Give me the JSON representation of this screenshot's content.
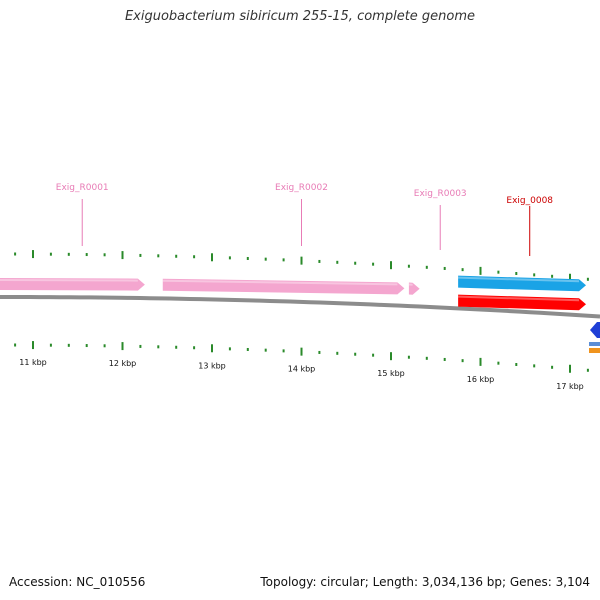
{
  "title": "Exiguobacterium sibiricum 255-15, complete genome",
  "footer": {
    "accession": "Accession: NC_010556",
    "summary": "Topology: circular; Length: 3,034,136 bp; Genes: 3,104"
  },
  "colors": {
    "rrna": "#f4a6cf",
    "cds_forward": "#1aa3e6",
    "cds_reverse": "#ff0000",
    "backbone": "#8c8c8c",
    "ticks": "#2a8a2a",
    "label_rrna": "#e87cb6",
    "label_cds": "#cc0000",
    "partial_blue": "#1f3fd6",
    "partial_orange": "#f0941e"
  },
  "scale": {
    "unit": "kbp",
    "labels": [
      "11 kbp",
      "12 kbp",
      "13 kbp",
      "14 kbp",
      "15 kbp",
      "16 kbp",
      "17 kbp"
    ]
  },
  "features": [
    {
      "name": "Exig_R0001",
      "type": "rRNA",
      "strand": "+",
      "start_kbp": 10.55,
      "end_kbp": 12.25,
      "label_kbp": 11.55
    },
    {
      "name": "Exig_R0002",
      "type": "rRNA",
      "strand": "+",
      "start_kbp": 12.45,
      "end_kbp": 15.15,
      "label_kbp": 14.0
    },
    {
      "name": "Exig_R0003",
      "type": "rRNA",
      "strand": "+",
      "start_kbp": 15.2,
      "end_kbp": 15.32,
      "label_kbp": 15.55
    },
    {
      "name": "Exig_0008",
      "type": "CDS",
      "strand": "-",
      "start_kbp": 15.75,
      "end_kbp": 17.2,
      "label_kbp": 16.55
    },
    {
      "name": "",
      "type": "CDS",
      "strand": "+",
      "start_kbp": 15.75,
      "end_kbp": 17.2
    }
  ]
}
